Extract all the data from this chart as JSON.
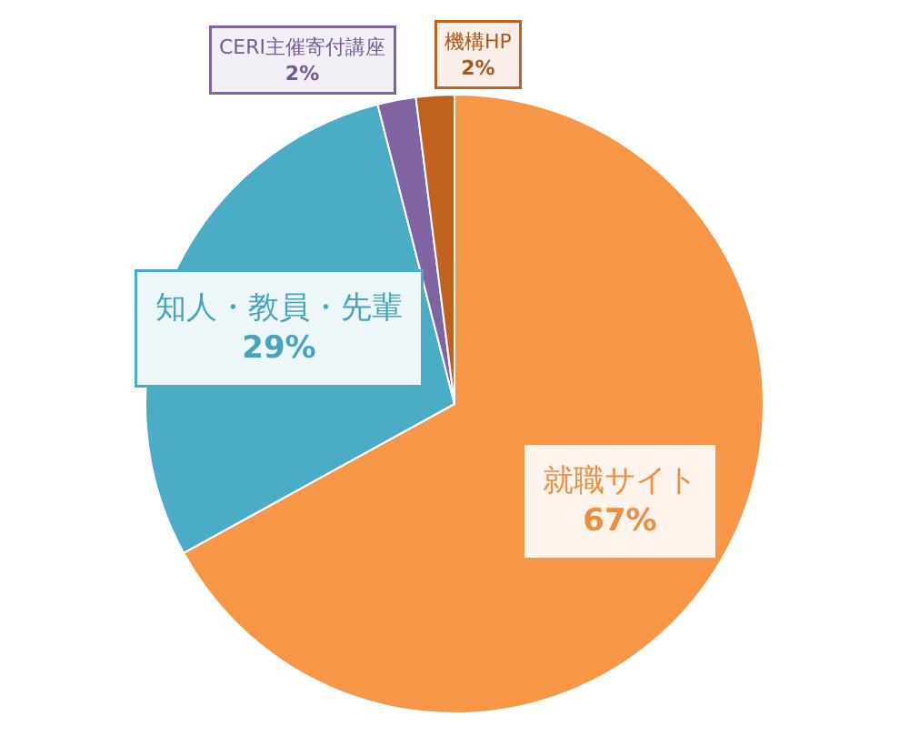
{
  "chart_data": {
    "type": "pie",
    "categories": [
      "就職サイト",
      "知人・教員・先輩",
      "CERI主催寄付講座",
      "機構HP"
    ],
    "values": [
      67,
      29,
      2,
      2
    ],
    "colors": [
      "#f79646",
      "#4bacc6",
      "#8064a2",
      "#c0621e"
    ],
    "value_labels": [
      "67%",
      "29%",
      "2%",
      "2%"
    ]
  }
}
